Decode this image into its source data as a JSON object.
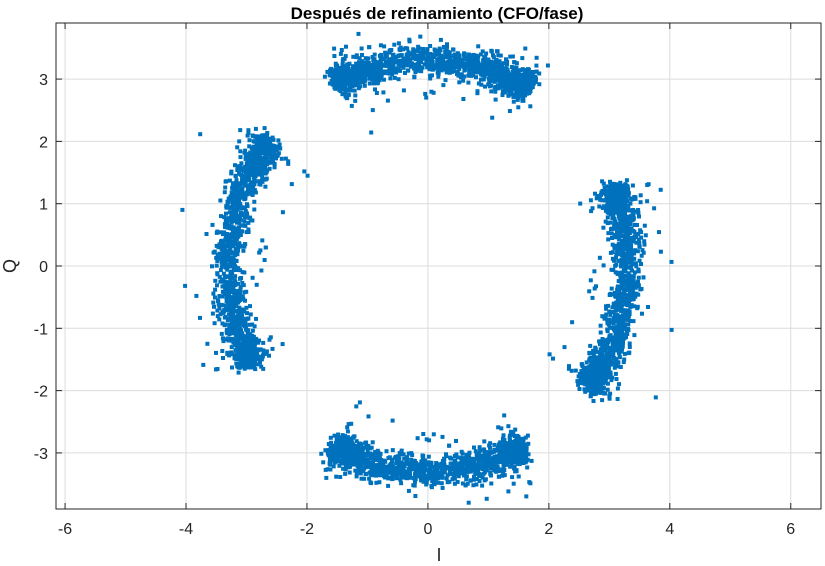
{
  "chart_data": {
    "type": "scatter",
    "title": "Después de refinamiento (CFO/fase)",
    "xlabel": "I",
    "ylabel": "Q",
    "xlim": [
      -6.15,
      6.5
    ],
    "ylim": [
      -3.9,
      3.9
    ],
    "xticks": [
      -6,
      -4,
      -2,
      0,
      2,
      4,
      6
    ],
    "yticks": [
      -3,
      -2,
      -1,
      0,
      1,
      2,
      3
    ],
    "xtick_labels": [
      "-6",
      "-4",
      "-2",
      "0",
      "2",
      "4",
      "6"
    ],
    "ytick_labels": [
      "-3",
      "-2",
      "-1",
      "0",
      "1",
      "2",
      "3"
    ],
    "grid": true,
    "marker_color": "#0072BD",
    "clusters": [
      {
        "center_angle_deg": 90,
        "radius": 3.3,
        "angular_span_deg": [
          60,
          117
        ],
        "radial_spread": 0.12
      },
      {
        "center_angle_deg": 180,
        "radius": 3.3,
        "angular_span_deg": [
          143,
          208
        ],
        "radial_spread": 0.12
      },
      {
        "center_angle_deg": 270,
        "radius": 3.3,
        "angular_span_deg": [
          242,
          298
        ],
        "radial_spread": 0.12
      },
      {
        "center_angle_deg": 0,
        "radius": 3.3,
        "angular_span_deg": [
          -36,
          22
        ],
        "radial_spread": 0.12
      }
    ],
    "points_per_cluster": 1500
  }
}
